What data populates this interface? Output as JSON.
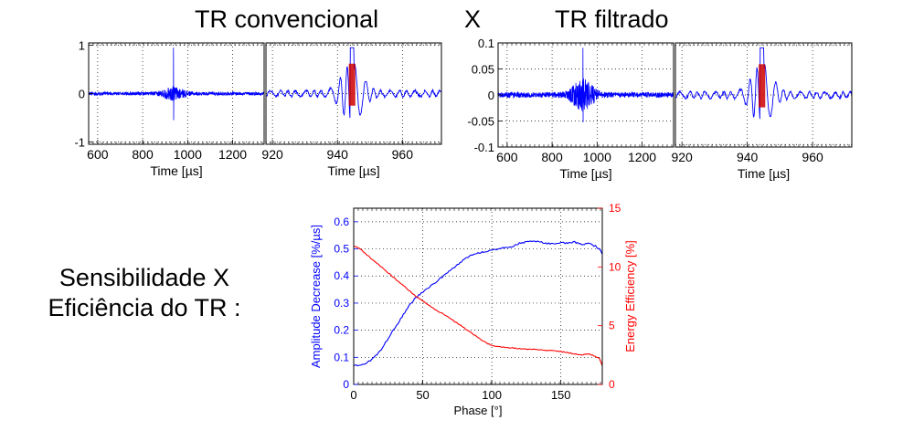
{
  "header": {
    "left": "TR convencional",
    "middle": "X",
    "right": "TR filtrado"
  },
  "side_label": {
    "line1": "Sensibilidade X",
    "line2": "Eficiência do TR :"
  },
  "colors": {
    "signal": "#0000ff",
    "window": "#cc0000",
    "efficiency": "#ff0000",
    "background": "#ffffff"
  },
  "chart_data": [
    {
      "type": "line",
      "panel": "conventional-full",
      "xlabel": "Time [µs]",
      "xlim": [
        560,
        1340
      ],
      "ylim": [
        -1.05,
        1.05
      ],
      "xticks": [
        "600",
        "800",
        "1000",
        "1200"
      ],
      "yticks": [
        "1",
        "0",
        "-1"
      ],
      "grid": true,
      "series": [
        {
          "points": [
            [
              560,
              0
            ],
            [
              900,
              0.05
            ],
            [
              930,
              -0.3
            ],
            [
              937,
              0.95
            ],
            [
              944,
              -0.5
            ],
            [
              950,
              0.2
            ],
            [
              970,
              0.05
            ],
            [
              1340,
              0
            ]
          ]
        }
      ]
    },
    {
      "type": "line",
      "panel": "conventional-zoom",
      "xlabel": "Time [µs]",
      "xlim": [
        918,
        972
      ],
      "ylim": [
        -1.05,
        1.05
      ],
      "xticks": [
        "920",
        "940",
        "960"
      ],
      "grid": true,
      "series": [
        {
          "points": [
            [
              918,
              0
            ],
            [
              932,
              0.1
            ],
            [
              938,
              -0.4
            ],
            [
              941,
              0.55
            ],
            [
              944,
              0.95
            ],
            [
              946,
              -0.8
            ],
            [
              950,
              0.4
            ],
            [
              955,
              -0.2
            ],
            [
              972,
              0
            ]
          ]
        }
      ],
      "window": [
        943.5,
        945.5
      ]
    },
    {
      "type": "line",
      "panel": "filtered-full",
      "xlabel": "Time [µs]",
      "xlim": [
        560,
        1340
      ],
      "ylim": [
        -0.1,
        0.1
      ],
      "xticks": [
        "600",
        "800",
        "1000",
        "1200"
      ],
      "yticks": [
        "0.1",
        "0.05",
        "0",
        "-0.05",
        "-0.1"
      ],
      "grid": true,
      "series": [
        {
          "points": [
            [
              560,
              0
            ],
            [
              900,
              0.01
            ],
            [
              930,
              -0.02
            ],
            [
              937,
              0.09
            ],
            [
              944,
              -0.05
            ],
            [
              950,
              0.02
            ],
            [
              970,
              0.01
            ],
            [
              1340,
              0
            ]
          ]
        }
      ]
    },
    {
      "type": "line",
      "panel": "filtered-zoom",
      "xlabel": "Time [µs]",
      "xlim": [
        918,
        972
      ],
      "ylim": [
        -0.1,
        0.1
      ],
      "xticks": [
        "920",
        "940",
        "960"
      ],
      "grid": true,
      "series": [
        {
          "points": [
            [
              918,
              0
            ],
            [
              932,
              0.01
            ],
            [
              938,
              -0.04
            ],
            [
              941,
              0.05
            ],
            [
              944,
              0.09
            ],
            [
              946,
              -0.08
            ],
            [
              950,
              0.04
            ],
            [
              955,
              -0.02
            ],
            [
              972,
              0
            ]
          ]
        }
      ],
      "window": [
        943.5,
        945.5
      ]
    },
    {
      "type": "line",
      "panel": "sensitivity-efficiency",
      "xlabel": "Phase [°]",
      "xlim": [
        0,
        180
      ],
      "xticks": [
        "0",
        "50",
        "100",
        "150"
      ],
      "ylabel": "Amplitude Decrease [%/µs]",
      "ylim": [
        0,
        0.65
      ],
      "yticks": [
        "0",
        "0.1",
        "0.2",
        "0.3",
        "0.4",
        "0.5",
        "0.6"
      ],
      "y2label": "Energy Efficiency [%]",
      "y2lim": [
        0,
        15
      ],
      "y2ticks": [
        "0",
        "5",
        "10",
        "15"
      ],
      "grid": true,
      "series": [
        {
          "axis": "left",
          "color": "#0000ff",
          "x": [
            0,
            5,
            10,
            15,
            20,
            25,
            30,
            35,
            40,
            45,
            50,
            55,
            60,
            65,
            70,
            75,
            80,
            85,
            90,
            95,
            100,
            105,
            110,
            115,
            120,
            125,
            130,
            135,
            140,
            145,
            150,
            155,
            160,
            165,
            170,
            175,
            178,
            180
          ],
          "y": [
            0.07,
            0.072,
            0.08,
            0.1,
            0.13,
            0.17,
            0.21,
            0.25,
            0.29,
            0.32,
            0.34,
            0.36,
            0.38,
            0.4,
            0.42,
            0.44,
            0.46,
            0.475,
            0.485,
            0.49,
            0.495,
            0.5,
            0.505,
            0.51,
            0.52,
            0.525,
            0.53,
            0.525,
            0.52,
            0.52,
            0.525,
            0.52,
            0.525,
            0.515,
            0.52,
            0.51,
            0.5,
            0.48
          ]
        },
        {
          "axis": "right",
          "color": "#ff0000",
          "x": [
            0,
            5,
            10,
            15,
            20,
            25,
            30,
            35,
            40,
            45,
            50,
            55,
            60,
            65,
            70,
            75,
            80,
            85,
            90,
            95,
            100,
            105,
            110,
            115,
            120,
            125,
            130,
            135,
            140,
            145,
            150,
            155,
            160,
            165,
            170,
            175,
            178,
            180
          ],
          "y": [
            11.8,
            11.5,
            11.0,
            10.5,
            10.0,
            9.5,
            9.0,
            8.5,
            8.0,
            7.5,
            7.1,
            6.7,
            6.3,
            6.0,
            5.6,
            5.2,
            4.8,
            4.4,
            4.0,
            3.6,
            3.3,
            3.2,
            3.15,
            3.1,
            3.05,
            3.0,
            3.0,
            2.95,
            2.9,
            2.85,
            2.8,
            2.7,
            2.6,
            2.5,
            2.6,
            2.4,
            2.2,
            1.6
          ]
        }
      ]
    }
  ]
}
